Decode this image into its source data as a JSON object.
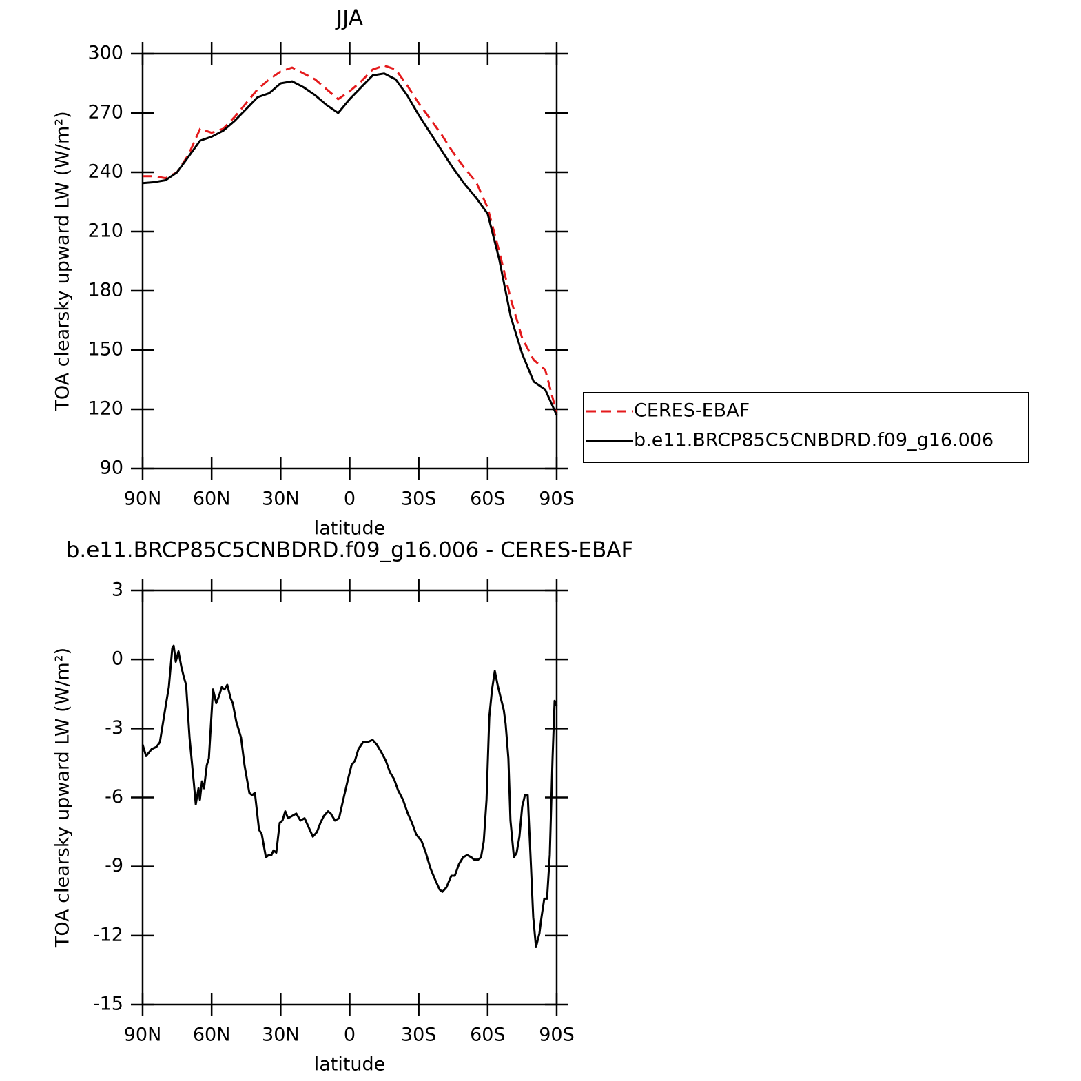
{
  "chart_data": [
    {
      "type": "line",
      "title": "JJA",
      "xlabel": "latitude",
      "ylabel": "TOA clearsky upward LW (W/m²)",
      "x": [
        90,
        85,
        80,
        75,
        70,
        65,
        60,
        55,
        50,
        45,
        40,
        35,
        30,
        25,
        20,
        15,
        10,
        5,
        0,
        -5,
        -10,
        -15,
        -20,
        -25,
        -30,
        -35,
        -40,
        -45,
        -50,
        -55,
        -60,
        -65,
        -70,
        -75,
        -80,
        -85,
        -90
      ],
      "series": [
        {
          "name": "CERES-EBAF",
          "color": "#e41a1c",
          "dashed": true,
          "values": [
            238,
            238,
            237,
            240,
            249,
            262,
            260,
            262,
            268,
            275,
            282,
            287,
            291,
            293,
            290,
            287,
            282,
            277,
            281,
            286,
            292,
            294,
            292,
            284,
            275,
            267,
            259,
            250,
            242,
            235,
            222,
            200,
            176,
            156,
            145,
            140,
            118
          ]
        },
        {
          "name": "b.e11.BRCP85C5CNBDRD.f09_g16.006",
          "color": "#000000",
          "dashed": false,
          "values": [
            234.5,
            235,
            236,
            240,
            248,
            256,
            258,
            261,
            266,
            272,
            278,
            280,
            285,
            286,
            283,
            279,
            274,
            270,
            277,
            283,
            289,
            290,
            287,
            279,
            269,
            260,
            251,
            242,
            234,
            227,
            219,
            196,
            167,
            148,
            134,
            130,
            117
          ]
        }
      ],
      "xlim": [
        90,
        -90
      ],
      "xticks": [
        {
          "value": 90,
          "label": "90N"
        },
        {
          "value": 60,
          "label": "60N"
        },
        {
          "value": 30,
          "label": "30N"
        },
        0,
        {
          "value": -30,
          "label": "30S"
        },
        {
          "value": -60,
          "label": "60S"
        },
        {
          "value": -90,
          "label": "90S"
        }
      ],
      "ylim": [
        90,
        300
      ],
      "yticks": [
        90,
        120,
        150,
        180,
        210,
        240,
        270,
        300
      ],
      "legend": "right"
    },
    {
      "type": "line",
      "title": "b.e11.BRCP85C5CNBDRD.f09_g16.006 - CERES-EBAF",
      "xlabel": "latitude",
      "ylabel": "TOA clearsky upward LW (W/m²)",
      "x": [
        90,
        88.5,
        86.1,
        84.0,
        82.5,
        80.1,
        78.6,
        77.1,
        76.5,
        75.6,
        74.4,
        73.2,
        72.0,
        71.1,
        69.6,
        67.8,
        66.9,
        65.7,
        65.1,
        64.2,
        63.3,
        62.1,
        61.2,
        60.3,
        59.4,
        58.0,
        56.8,
        55.6,
        54.4,
        53.2,
        51.7,
        50.8,
        49.3,
        47.2,
        45.7,
        43.6,
        42.4,
        41.2,
        39.4,
        38.2,
        36.4,
        35.2,
        34.0,
        33.1,
        31.9,
        30.4,
        29.2,
        28.0,
        26.8,
        25.0,
        23.2,
        21.4,
        19.6,
        17.8,
        16.0,
        14.2,
        12.7,
        11.2,
        9.4,
        8.2,
        6.4,
        4.6,
        2.8,
        0.7,
        -0.8,
        -2.3,
        -3.8,
        -5.8,
        -7.6,
        -10.0,
        -11.8,
        -13.6,
        -15.7,
        -17.5,
        -19.3,
        -21.1,
        -23.2,
        -25.3,
        -27.1,
        -28.9,
        -31.3,
        -33.1,
        -35.2,
        -37.3,
        -39.1,
        -40.3,
        -42.1,
        -44.2,
        -45.7,
        -47.5,
        -49.3,
        -51.1,
        -52.9,
        -54.1,
        -55.9,
        -57.1,
        -58.3,
        -59.5,
        -60.7,
        -61.9,
        -63.1,
        -64.3,
        -65.5,
        -67.0,
        -67.8,
        -69.0,
        -69.9,
        -71.4,
        -72.6,
        -73.8,
        -75.0,
        -76.2,
        -77.4,
        -78.6,
        -79.8,
        -81.0,
        -82.5,
        -83.4,
        -84.6,
        -85.8,
        -87.0,
        -88.2,
        -89.1,
        -90.0
      ],
      "color": "#000000",
      "values": [
        -3.7,
        -4.2,
        -3.9,
        -3.8,
        -3.6,
        -2.1,
        -1.2,
        0.5,
        0.6,
        -0.1,
        0.35,
        -0.3,
        -0.8,
        -1.1,
        -3.4,
        -5.3,
        -6.3,
        -5.6,
        -6.1,
        -5.3,
        -5.6,
        -4.6,
        -4.3,
        -2.8,
        -1.3,
        -1.9,
        -1.6,
        -1.2,
        -1.3,
        -1.1,
        -1.7,
        -1.9,
        -2.7,
        -3.4,
        -4.6,
        -5.8,
        -5.9,
        -5.8,
        -7.4,
        -7.6,
        -8.6,
        -8.5,
        -8.5,
        -8.3,
        -8.4,
        -7.1,
        -7.0,
        -6.6,
        -6.9,
        -6.8,
        -6.7,
        -7.0,
        -6.9,
        -7.3,
        -7.7,
        -7.5,
        -7.1,
        -6.8,
        -6.6,
        -6.7,
        -7.0,
        -6.9,
        -6.1,
        -5.2,
        -4.6,
        -4.4,
        -3.9,
        -3.6,
        -3.6,
        -3.5,
        -3.7,
        -4.0,
        -4.4,
        -4.9,
        -5.2,
        -5.7,
        -6.1,
        -6.7,
        -7.1,
        -7.6,
        -7.9,
        -8.4,
        -9.1,
        -9.6,
        -10.0,
        -10.1,
        -9.9,
        -9.4,
        -9.4,
        -8.9,
        -8.6,
        -8.5,
        -8.6,
        -8.7,
        -8.7,
        -8.6,
        -7.9,
        -6.1,
        -2.5,
        -1.3,
        -0.5,
        -1.1,
        -1.6,
        -2.2,
        -2.8,
        -4.3,
        -7.0,
        -8.6,
        -8.4,
        -7.7,
        -6.4,
        -5.9,
        -5.9,
        -8.5,
        -11.2,
        -12.5,
        -11.9,
        -11.2,
        -10.4,
        -10.4,
        -8.5,
        -4.3,
        -1.8,
        -2.0
      ],
      "xlim": [
        90,
        -90
      ],
      "xticks": [
        {
          "value": 90,
          "label": "90N"
        },
        {
          "value": 60,
          "label": "60N"
        },
        {
          "value": 30,
          "label": "30N"
        },
        0,
        {
          "value": -30,
          "label": "30S"
        },
        {
          "value": -60,
          "label": "60S"
        },
        {
          "value": -90,
          "label": "90S"
        }
      ],
      "ylim": [
        -15,
        3
      ],
      "yticks": [
        -15,
        -12,
        -9,
        -6,
        -3,
        0,
        3
      ]
    }
  ]
}
